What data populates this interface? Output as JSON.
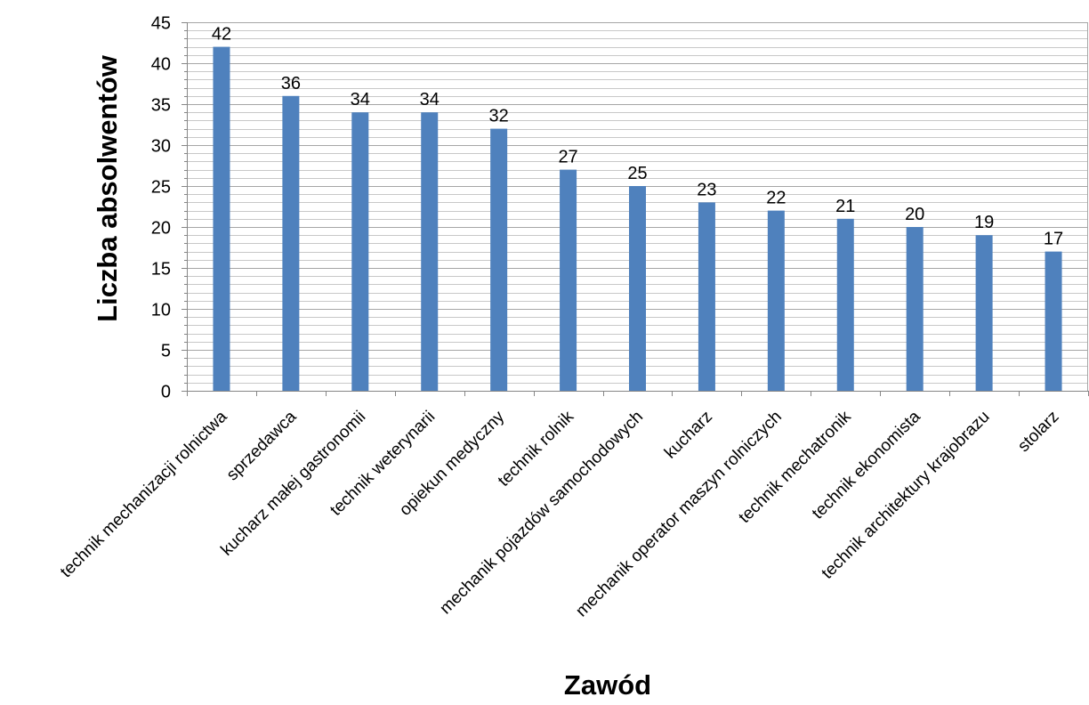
{
  "chart_data": {
    "type": "bar",
    "title": "",
    "xlabel": "Zawód",
    "ylabel": "Liczba absolwentów",
    "ylim": [
      0,
      45
    ],
    "y_major_step": 5,
    "y_minor_step": 1,
    "grid": true,
    "legend": "none",
    "bar_color": "#4f81bd",
    "categories": [
      "technik mechanizacji rolnictwa",
      "sprzedawca",
      "kucharz małej gastronomii",
      "technik weterynarii",
      "opiekun medyczny",
      "technik rolnik",
      "mechanik pojazdów samochodowych",
      "kucharz",
      "mechanik operator maszyn rolniczych",
      "technik mechatronik",
      "technik ekonomista",
      "technik architektury krajobrazu",
      "stolarz"
    ],
    "values": [
      42,
      36,
      34,
      34,
      32,
      27,
      25,
      23,
      22,
      21,
      20,
      19,
      17
    ],
    "data_labels": [
      "42",
      "36",
      "34",
      "34",
      "32",
      "27",
      "25",
      "23",
      "22",
      "21",
      "20",
      "19",
      "17"
    ]
  }
}
